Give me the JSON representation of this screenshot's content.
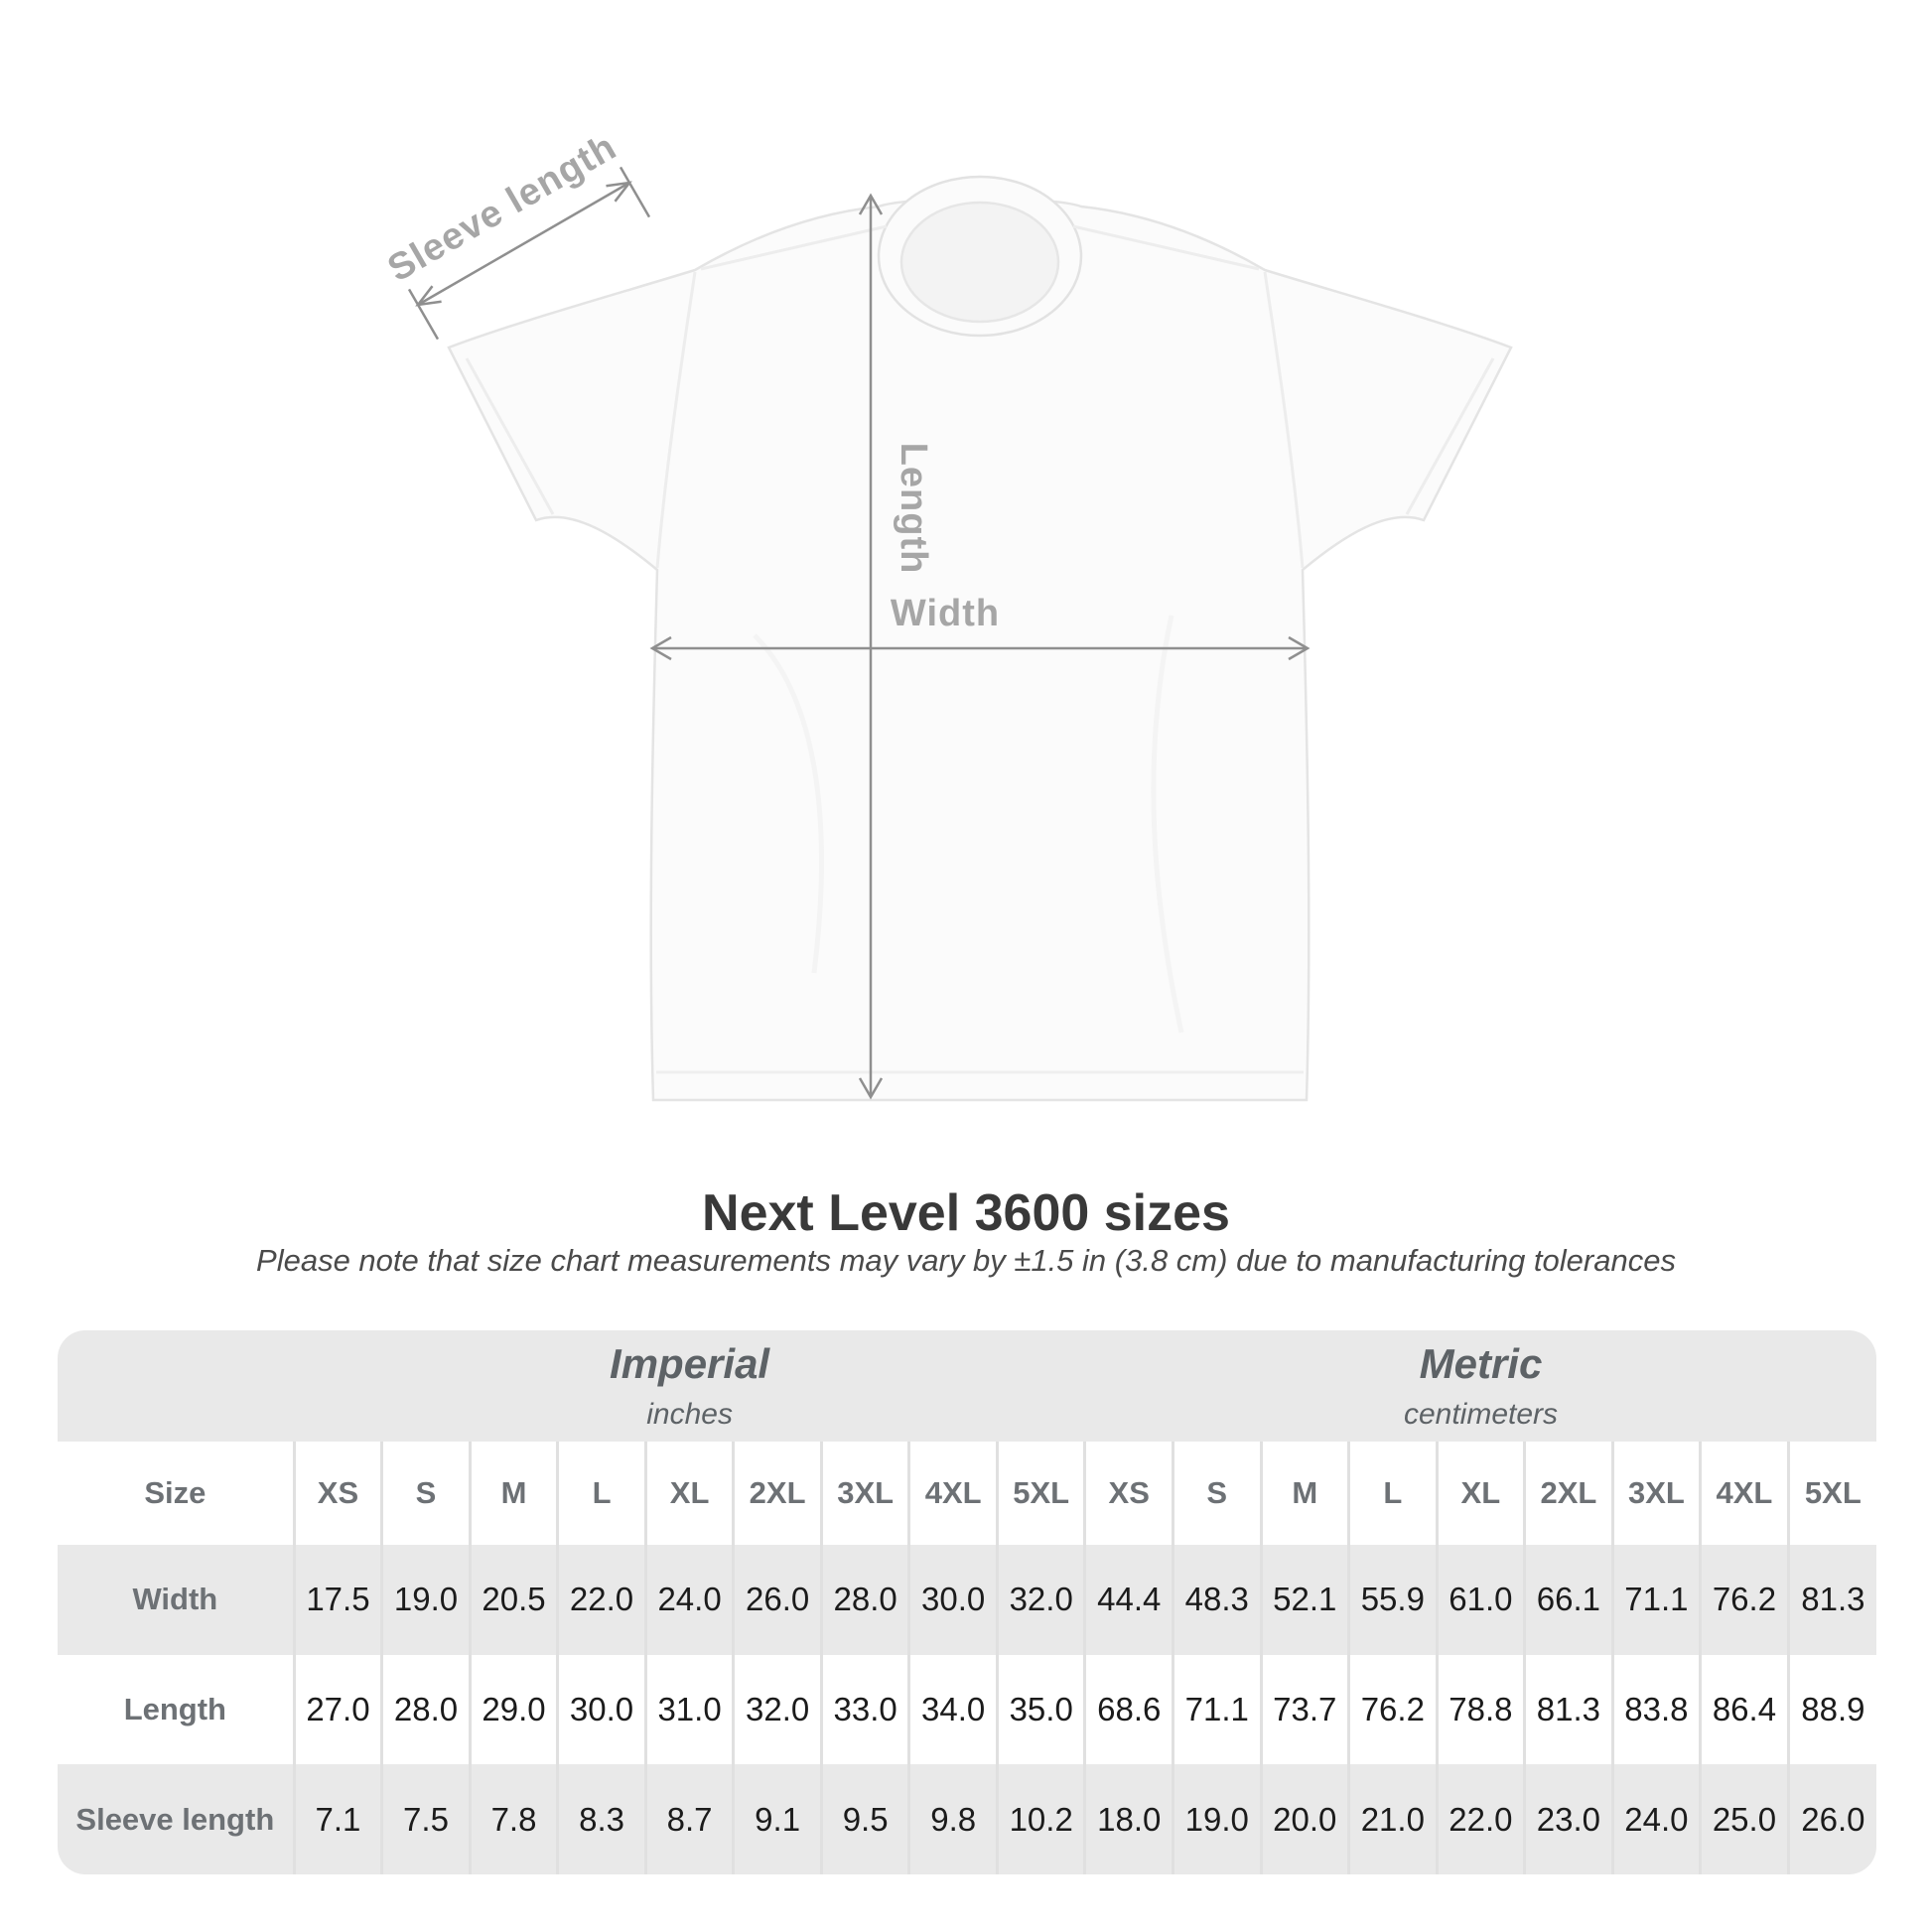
{
  "header": {
    "title": "Next Level 3600 sizes",
    "note": "Please note that size chart measurements may vary by ±1.5 in (3.8 cm) due to manufacturing tolerances"
  },
  "diagram": {
    "sleeve_label": "Sleeve length",
    "length_label": "Length",
    "width_label": "Width",
    "line_color": "#8f8f8f",
    "label_color": "#a6a6a6",
    "shirt_fill": "#fbfbfb",
    "shirt_outline": "#e4e4e4"
  },
  "chart_data": {
    "type": "table",
    "title": "Next Level 3600 sizes",
    "note": "Please note that size chart measurements may vary by ±1.5 in (3.8 cm) due to manufacturing tolerances",
    "size_col_label": "Size",
    "unit_groups": [
      {
        "name": "Imperial",
        "unit": "inches"
      },
      {
        "name": "Metric",
        "unit": "centimeters"
      }
    ],
    "sizes": [
      "XS",
      "S",
      "M",
      "L",
      "XL",
      "2XL",
      "3XL",
      "4XL",
      "5XL"
    ],
    "rows": [
      {
        "label": "Width",
        "imperial": [
          "17.5",
          "19.0",
          "20.5",
          "22.0",
          "24.0",
          "26.0",
          "28.0",
          "30.0",
          "32.0"
        ],
        "metric": [
          "44.4",
          "48.3",
          "52.1",
          "55.9",
          "61.0",
          "66.1",
          "71.1",
          "76.2",
          "81.3"
        ]
      },
      {
        "label": "Length",
        "imperial": [
          "27.0",
          "28.0",
          "29.0",
          "30.0",
          "31.0",
          "32.0",
          "33.0",
          "34.0",
          "35.0"
        ],
        "metric": [
          "68.6",
          "71.1",
          "73.7",
          "76.2",
          "78.8",
          "81.3",
          "83.8",
          "86.4",
          "88.9"
        ]
      },
      {
        "label": "Sleeve length",
        "imperial": [
          "7.1",
          "7.5",
          "7.8",
          "8.3",
          "8.7",
          "9.1",
          "9.5",
          "9.8",
          "10.2"
        ],
        "metric": [
          "18.0",
          "19.0",
          "20.0",
          "21.0",
          "22.0",
          "23.0",
          "24.0",
          "25.0",
          "26.0"
        ]
      }
    ]
  }
}
